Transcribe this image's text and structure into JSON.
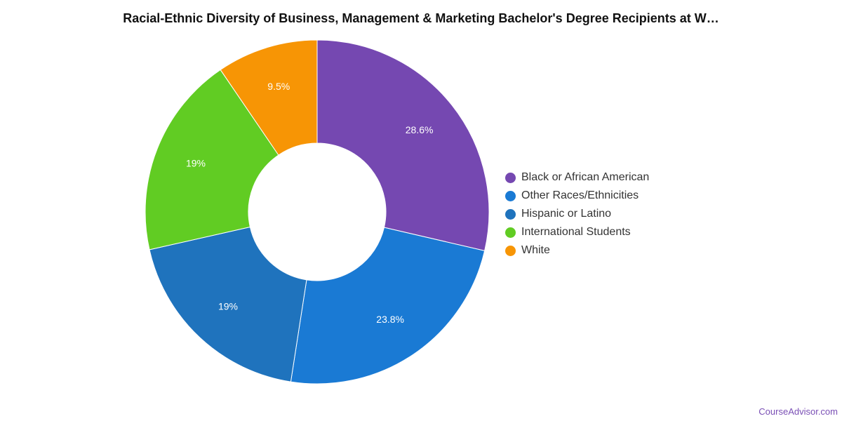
{
  "chart_data": {
    "type": "pie",
    "donut": true,
    "title": "Racial-Ethnic Diversity of Business, Management & Marketing Bachelor's Degree Recipients at W…",
    "slices": [
      {
        "label": "Black or African American",
        "value": 28.6,
        "display": "28.6%",
        "color": "#7548b1"
      },
      {
        "label": "Other Races/Ethnicities",
        "value": 23.8,
        "display": "23.8%",
        "color": "#1a7ad4"
      },
      {
        "label": "Hispanic or Latino",
        "value": 19.0,
        "display": "19%",
        "color": "#1f73bd"
      },
      {
        "label": "International Students",
        "value": 19.0,
        "display": "19%",
        "color": "#61cc23"
      },
      {
        "label": "White",
        "value": 9.5,
        "display": "9.5%",
        "color": "#f79505"
      }
    ],
    "legend_position": "right"
  },
  "credit": "CourseAdvisor.com"
}
